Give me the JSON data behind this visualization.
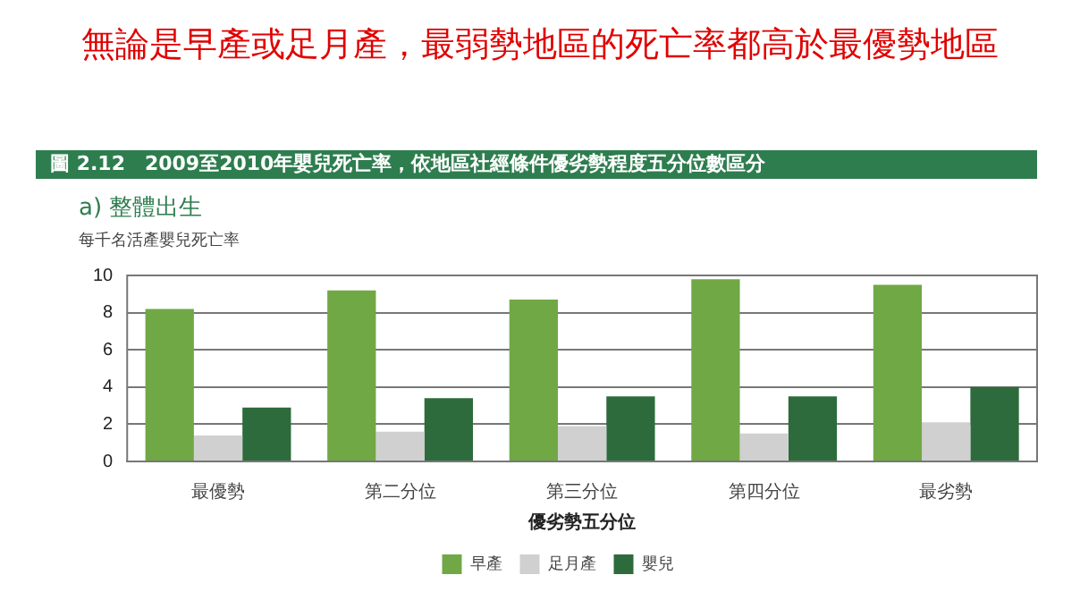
{
  "chart_data": {
    "type": "bar",
    "title": "無論是早產或足月產，最弱勢地區的死亡率都高於最優勢地區",
    "subtitle": "圖 2.12　2009至2010年嬰兒死亡率，依地區社經條件優劣勢程度五分位數區分",
    "annotations": [
      "a) 整體出生"
    ],
    "ylabel": "每千名活產嬰兒死亡率",
    "xlabel": "優劣勢五分位",
    "categories": [
      "最優勢",
      "第二分位",
      "第三分位",
      "第四分位",
      "最劣勢"
    ],
    "series": [
      {
        "name": "早產",
        "color": "#70a845",
        "values": [
          8.2,
          9.2,
          8.7,
          9.8,
          9.5
        ]
      },
      {
        "name": "足月產",
        "color": "#d0d0d0",
        "values": [
          1.4,
          1.6,
          1.9,
          1.5,
          2.1
        ]
      },
      {
        "name": "嬰兒",
        "color": "#2d6b3c",
        "values": [
          2.9,
          3.4,
          3.5,
          3.5,
          4.0
        ]
      }
    ],
    "ylim": [
      0,
      10
    ],
    "yticks": [
      0,
      2,
      4,
      6,
      8,
      10
    ],
    "grid": "y",
    "legend": "bottom"
  }
}
